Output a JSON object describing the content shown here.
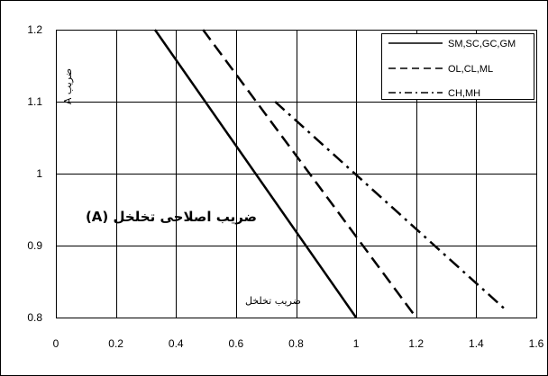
{
  "chart_data": {
    "type": "line",
    "title": "",
    "xlabel": "ضریب تخلخل",
    "ylabel": "ضریب A",
    "annotation": "ضریب اصلاحی تخلخل (A)",
    "xlim": [
      0,
      1.6
    ],
    "ylim": [
      0.8,
      1.2
    ],
    "x_ticks": [
      0,
      0.2,
      0.4,
      0.6,
      0.8,
      1.0,
      1.2,
      1.4,
      1.6
    ],
    "x_tick_labels": [
      "0",
      "0.2",
      "0.4",
      "0.6",
      "0.8",
      "1",
      "1.2",
      "1.4",
      "1.6"
    ],
    "y_ticks": [
      0.8,
      0.9,
      1.0,
      1.1,
      1.2
    ],
    "y_tick_labels": [
      "0.8",
      "0.9",
      "1",
      "1.1",
      "1.2"
    ],
    "grid": true,
    "legend": "top-right",
    "line_color": "#000000",
    "series": [
      {
        "name": "SM,SC,GC,GM",
        "line_style": "solid",
        "x": [
          0.33,
          1.0
        ],
        "y": [
          1.2,
          0.8
        ]
      },
      {
        "name": "OL,CL,ML",
        "line_style": "dashed",
        "x": [
          0.49,
          1.2
        ],
        "y": [
          1.2,
          0.8
        ]
      },
      {
        "name": "CH,MH",
        "line_style": "dash-dot",
        "x": [
          0.73,
          1.5
        ],
        "y": [
          1.1,
          0.81
        ]
      }
    ]
  }
}
